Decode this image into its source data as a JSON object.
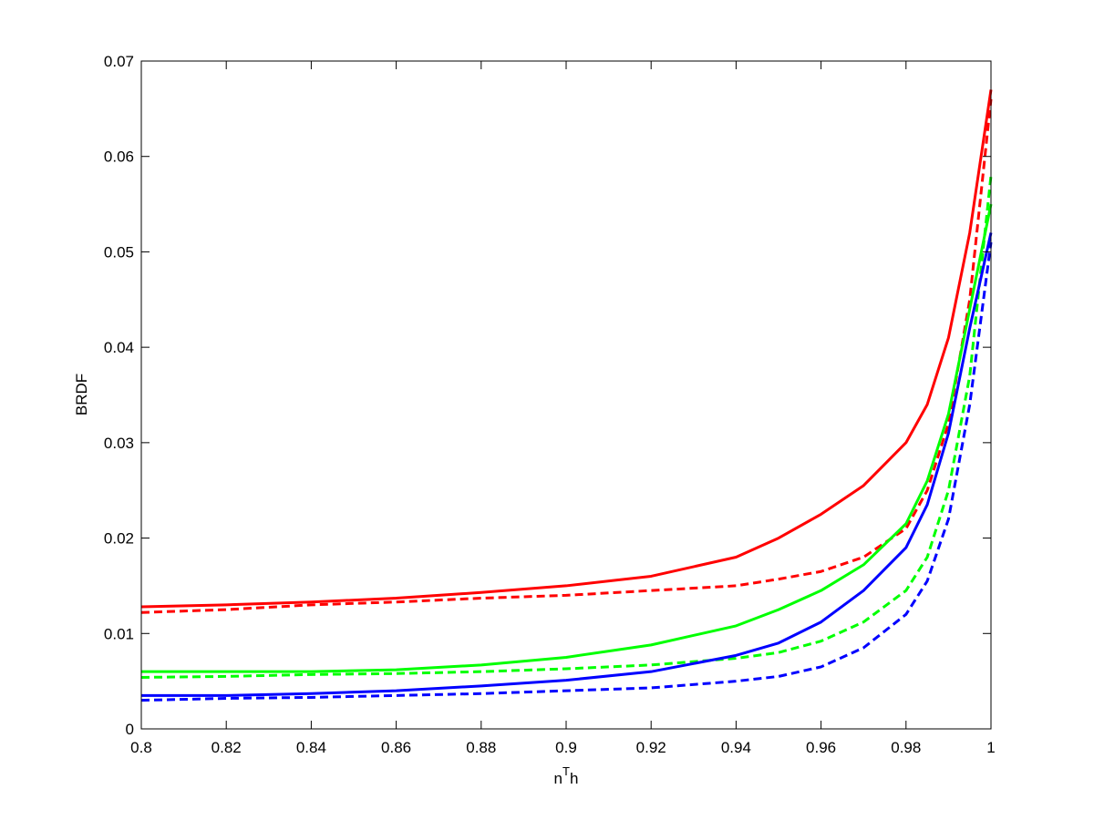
{
  "chart_data": {
    "type": "line",
    "xlabel": [
      "n",
      "T",
      "h"
    ],
    "ylabel": "BRDF",
    "x": [
      0.8,
      0.82,
      0.84,
      0.86,
      0.88,
      0.9,
      0.92,
      0.94,
      0.95,
      0.96,
      0.97,
      0.98,
      0.985,
      0.99,
      0.995,
      1.0
    ],
    "series": [
      {
        "color": "#ff0000",
        "dashed": false,
        "values": [
          0.0128,
          0.013,
          0.0133,
          0.0137,
          0.0143,
          0.015,
          0.016,
          0.018,
          0.02,
          0.0225,
          0.0255,
          0.03,
          0.034,
          0.041,
          0.052,
          0.067
        ]
      },
      {
        "color": "#ff0000",
        "dashed": true,
        "values": [
          0.0122,
          0.0125,
          0.013,
          0.0133,
          0.0137,
          0.014,
          0.0145,
          0.015,
          0.0157,
          0.0165,
          0.018,
          0.021,
          0.025,
          0.032,
          0.045,
          0.066
        ]
      },
      {
        "color": "#00ff00",
        "dashed": false,
        "values": [
          0.006,
          0.006,
          0.006,
          0.0062,
          0.0067,
          0.0075,
          0.0088,
          0.0108,
          0.0125,
          0.0145,
          0.0172,
          0.0215,
          0.026,
          0.033,
          0.044,
          0.055
        ]
      },
      {
        "color": "#00ff00",
        "dashed": true,
        "values": [
          0.0054,
          0.0055,
          0.0057,
          0.0058,
          0.006,
          0.0063,
          0.0067,
          0.0074,
          0.008,
          0.0092,
          0.0112,
          0.0145,
          0.018,
          0.025,
          0.037,
          0.058
        ]
      },
      {
        "color": "#0000ff",
        "dashed": false,
        "values": [
          0.0035,
          0.0035,
          0.0037,
          0.004,
          0.0045,
          0.0051,
          0.006,
          0.0077,
          0.009,
          0.0112,
          0.0145,
          0.019,
          0.0235,
          0.031,
          0.042,
          0.052
        ]
      },
      {
        "color": "#0000ff",
        "dashed": true,
        "values": [
          0.003,
          0.0032,
          0.0033,
          0.0035,
          0.0037,
          0.004,
          0.0043,
          0.005,
          0.0055,
          0.0065,
          0.0085,
          0.012,
          0.0155,
          0.022,
          0.034,
          0.051
        ]
      }
    ],
    "xlim": [
      0.8,
      1
    ],
    "ylim": [
      0,
      0.07
    ],
    "xticks": [
      0.8,
      0.82,
      0.84,
      0.86,
      0.88,
      0.9,
      0.92,
      0.94,
      0.96,
      0.98,
      1
    ],
    "yticks": [
      0,
      0.01,
      0.02,
      0.03,
      0.04,
      0.05,
      0.06,
      0.07
    ],
    "grid": false
  }
}
